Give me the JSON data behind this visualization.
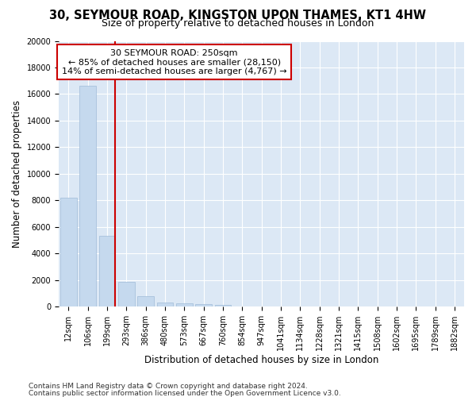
{
  "title": "30, SEYMOUR ROAD, KINGSTON UPON THAMES, KT1 4HW",
  "subtitle": "Size of property relative to detached houses in London",
  "xlabel": "Distribution of detached houses by size in London",
  "ylabel": "Number of detached properties",
  "categories": [
    "12sqm",
    "106sqm",
    "199sqm",
    "293sqm",
    "386sqm",
    "480sqm",
    "573sqm",
    "667sqm",
    "760sqm",
    "854sqm",
    "947sqm",
    "1041sqm",
    "1134sqm",
    "1228sqm",
    "1321sqm",
    "1415sqm",
    "1508sqm",
    "1602sqm",
    "1695sqm",
    "1789sqm",
    "1882sqm"
  ],
  "values": [
    8200,
    16600,
    5350,
    1850,
    780,
    320,
    240,
    190,
    160,
    0,
    0,
    0,
    0,
    0,
    0,
    0,
    0,
    0,
    0,
    0,
    0
  ],
  "bar_color": "#c5d9ee",
  "bar_edge_color": "#a0bcd8",
  "vline_color": "#cc0000",
  "annotation_line1": "30 SEYMOUR ROAD: 250sqm",
  "annotation_line2": "← 85% of detached houses are smaller (28,150)",
  "annotation_line3": "14% of semi-detached houses are larger (4,767) →",
  "annotation_box_facecolor": "#ffffff",
  "annotation_box_edgecolor": "#cc0000",
  "ylim": [
    0,
    20000
  ],
  "yticks": [
    0,
    2000,
    4000,
    6000,
    8000,
    10000,
    12000,
    14000,
    16000,
    18000,
    20000
  ],
  "fig_facecolor": "#ffffff",
  "plot_facecolor": "#dce8f5",
  "grid_color": "#ffffff",
  "footer1": "Contains HM Land Registry data © Crown copyright and database right 2024.",
  "footer2": "Contains public sector information licensed under the Open Government Licence v3.0.",
  "title_fontsize": 10.5,
  "subtitle_fontsize": 9,
  "axis_label_fontsize": 8.5,
  "tick_fontsize": 7,
  "annotation_fontsize": 8,
  "footer_fontsize": 6.5
}
